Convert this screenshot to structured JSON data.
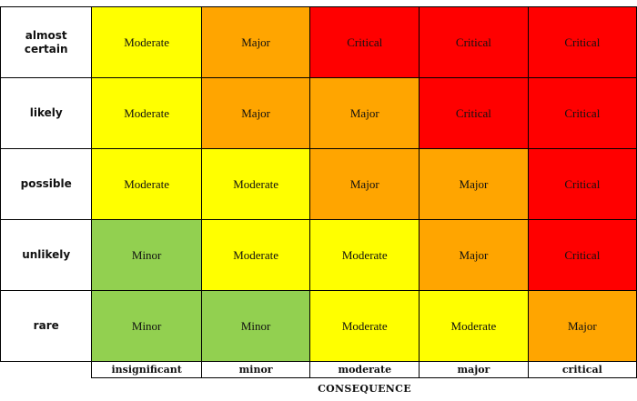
{
  "colors": {
    "Minor": "#92d050",
    "Moderate": "#ffff00",
    "Major": "#ffa500",
    "Critical": "#ff0000"
  },
  "likelihood": [
    "almost certain",
    "likely",
    "possible",
    "unlikely",
    "rare"
  ],
  "consequence": [
    "insignificant",
    "minor",
    "moderate",
    "major",
    "critical"
  ],
  "matrix": [
    [
      "Moderate",
      "Major",
      "Critical",
      "Critical",
      "Critical"
    ],
    [
      "Moderate",
      "Major",
      "Major",
      "Critical",
      "Critical"
    ],
    [
      "Moderate",
      "Moderate",
      "Major",
      "Major",
      "Critical"
    ],
    [
      "Minor",
      "Moderate",
      "Moderate",
      "Major",
      "Critical"
    ],
    [
      "Minor",
      "Minor",
      "Moderate",
      "Moderate",
      "Major"
    ]
  ],
  "axis_title": "CONSEQUENCE"
}
